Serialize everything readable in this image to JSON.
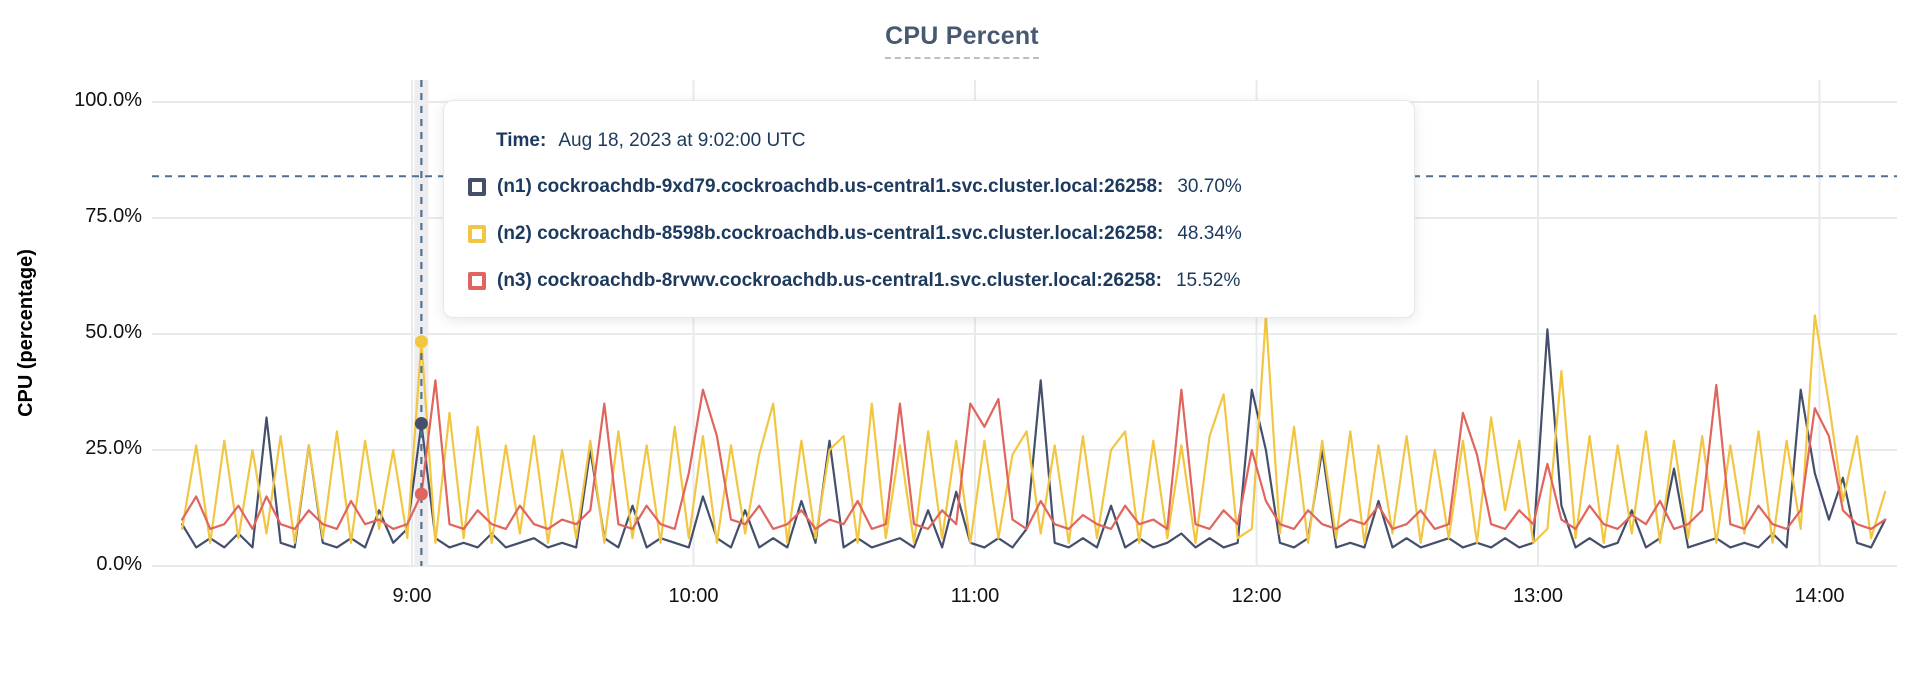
{
  "tooltip": {
    "time_label": "Time:",
    "time_value": "Aug 18, 2023 at 9:02:00 UTC",
    "series": [
      {
        "label": "(n1) cockroachdb-9xd79.cockroachdb.us-central1.svc.cluster.local:26258:",
        "value": "30.70%",
        "color": "#44506b"
      },
      {
        "label": "(n2) cockroachdb-8598b.cockroachdb.us-central1.svc.cluster.local:26258:",
        "value": "48.34%",
        "color": "#f2c643"
      },
      {
        "label": "(n3) cockroachdb-8rvwv.cockroachdb.us-central1.svc.cluster.local:26258:",
        "value": "15.52%",
        "color": "#e0655e"
      }
    ]
  },
  "chart_data": {
    "type": "line",
    "title": "CPU Percent",
    "xlabel": "",
    "ylabel": "CPU (percentage)",
    "ylim": [
      0,
      100
    ],
    "grid": true,
    "legend_position": "tooltip-overlay",
    "y_ticks": [
      {
        "value": 0,
        "label": "0.0%"
      },
      {
        "value": 25,
        "label": "25.0%"
      },
      {
        "value": 50,
        "label": "50.0%"
      },
      {
        "value": 75,
        "label": "75.0%"
      },
      {
        "value": 100,
        "label": "100.0%"
      }
    ],
    "x_ticks": [
      {
        "hour": 9,
        "label": "9:00"
      },
      {
        "hour": 10,
        "label": "10:00"
      },
      {
        "hour": 11,
        "label": "11:00"
      },
      {
        "hour": 12,
        "label": "12:00"
      },
      {
        "hour": 13,
        "label": "13:00"
      },
      {
        "hour": 14,
        "label": "14:00"
      }
    ],
    "colors": {
      "grid": "#e9eaec",
      "crosshair": "#51718e",
      "threshold": "#51718e",
      "hover_band": "#ededef"
    },
    "threshold_percent": 84,
    "crosshair_hour": 9.0333,
    "x_start_hour": 8.1833,
    "x_step_hour": 0.05,
    "series": [
      {
        "id": "n1",
        "name": "(n1) cockroachdb-9xd79.cockroachdb.us-central1.svc.cluster.local:26258",
        "color": "#44506b",
        "marker_value": 30.7,
        "values": [
          9,
          4,
          6,
          4,
          7,
          4,
          32,
          5,
          4,
          26,
          5,
          4,
          6,
          4,
          12,
          5,
          8,
          30.7,
          6,
          4,
          5,
          4,
          7,
          4,
          5,
          6,
          4,
          5,
          4,
          25,
          6,
          4,
          13,
          4,
          6,
          5,
          4,
          15,
          6,
          4,
          12,
          4,
          6,
          4,
          14,
          5,
          27,
          4,
          6,
          4,
          5,
          6,
          4,
          12,
          4,
          16,
          5,
          4,
          6,
          4,
          8,
          40,
          5,
          4,
          6,
          4,
          13,
          4,
          6,
          4,
          5,
          7,
          4,
          6,
          4,
          5,
          38,
          25,
          5,
          4,
          6,
          25,
          4,
          5,
          4,
          14,
          4,
          6,
          4,
          5,
          6,
          4,
          5,
          4,
          6,
          4,
          5,
          51,
          13,
          4,
          6,
          4,
          5,
          12,
          4,
          6,
          21,
          4,
          5,
          6,
          4,
          5,
          4,
          7,
          4,
          38,
          20,
          10,
          19,
          5,
          4,
          10
        ]
      },
      {
        "id": "n2",
        "name": "(n2) cockroachdb-8598b.cockroachdb.us-central1.svc.cluster.local:26258",
        "color": "#f2c643",
        "marker_value": 48.34,
        "values": [
          8,
          26,
          5,
          27,
          6,
          25,
          7,
          28,
          5,
          26,
          6,
          29,
          5,
          27,
          8,
          25,
          6,
          48.34,
          5,
          33,
          6,
          30,
          5,
          26,
          7,
          28,
          5,
          25,
          6,
          27,
          5,
          29,
          6,
          26,
          5,
          30,
          6,
          28,
          5,
          26,
          7,
          24,
          35,
          5,
          27,
          6,
          25,
          28,
          5,
          35,
          6,
          26,
          5,
          29,
          6,
          27,
          5,
          27,
          6,
          24,
          29,
          7,
          26,
          5,
          28,
          6,
          25,
          29,
          5,
          27,
          6,
          26,
          5,
          28,
          37,
          6,
          8,
          54,
          7,
          30,
          5,
          27,
          6,
          29,
          5,
          26,
          7,
          28,
          5,
          25,
          6,
          27,
          5,
          32,
          12,
          27,
          5,
          8,
          42,
          6,
          28,
          5,
          26,
          7,
          29,
          5,
          27,
          6,
          28,
          5,
          26,
          7,
          29,
          5,
          27,
          8,
          54,
          35,
          14,
          28,
          6,
          16
        ]
      },
      {
        "id": "n3",
        "name": "(n3) cockroachdb-8rvwv.cockroachdb.us-central1.svc.cluster.local:26258",
        "color": "#e0655e",
        "marker_value": 15.52,
        "values": [
          10,
          15,
          8,
          9,
          13,
          8,
          15,
          9,
          8,
          12,
          9,
          8,
          14,
          9,
          10,
          8,
          9,
          15.52,
          40,
          9,
          8,
          12,
          9,
          8,
          13,
          9,
          8,
          10,
          9,
          12,
          35,
          9,
          8,
          13,
          9,
          8,
          20,
          38,
          28,
          10,
          9,
          13,
          8,
          9,
          12,
          8,
          10,
          9,
          14,
          8,
          9,
          35,
          9,
          8,
          12,
          9,
          35,
          30,
          36,
          10,
          8,
          14,
          9,
          8,
          11,
          9,
          8,
          13,
          9,
          10,
          8,
          38,
          9,
          8,
          12,
          9,
          25,
          14,
          9,
          8,
          12,
          9,
          8,
          10,
          9,
          13,
          8,
          9,
          12,
          8,
          9,
          33,
          24,
          9,
          8,
          12,
          9,
          22,
          10,
          8,
          13,
          9,
          8,
          11,
          9,
          14,
          8,
          9,
          12,
          39,
          9,
          8,
          13,
          9,
          8,
          12,
          34,
          28,
          12,
          9,
          8,
          10
        ]
      }
    ]
  }
}
